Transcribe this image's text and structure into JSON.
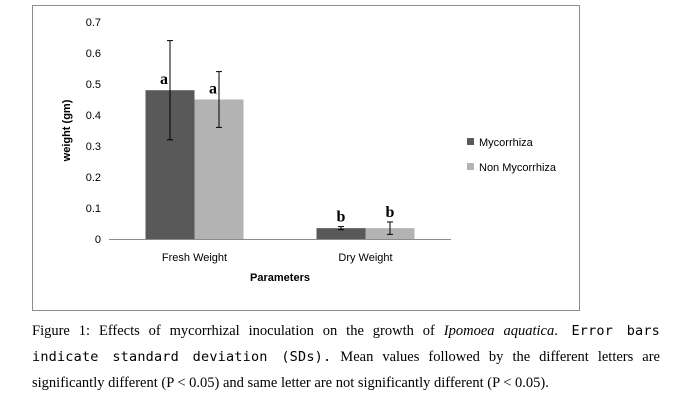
{
  "chart_data": {
    "type": "bar",
    "categories": [
      "Fresh Weight",
      "Dry Weight"
    ],
    "series": [
      {
        "name": "Mycorrhiza",
        "color": "#595959",
        "values": [
          0.48,
          0.035
        ],
        "sd": [
          0.16,
          0.005
        ],
        "letters": [
          "a",
          "b"
        ]
      },
      {
        "name": "Non Mycorrhiza",
        "color": "#b3b3b3",
        "values": [
          0.45,
          0.035
        ],
        "sd": [
          0.09,
          0.02
        ],
        "letters": [
          "a",
          "b"
        ]
      }
    ],
    "ylabel": "weight (gm)",
    "xlabel": "Parameters",
    "ylim": [
      0,
      0.7
    ],
    "yticks": [
      "0",
      "0.1",
      "0.2",
      "0.3",
      "0.4",
      "0.5",
      "0.6",
      "0.7"
    ],
    "grid": false,
    "legend_position": "right"
  },
  "caption": {
    "prefix": "Figure 1: Effects of mycorrhizal inoculation on the growth of ",
    "species": "Ipomoea aquatica",
    "period": ".",
    "mono_text": " Error bars indicate standard deviation (SDs).",
    "suffix": " Mean values followed by the different letters are significantly different (P < 0.05) and same letter are not significantly different (P < 0.05)."
  }
}
